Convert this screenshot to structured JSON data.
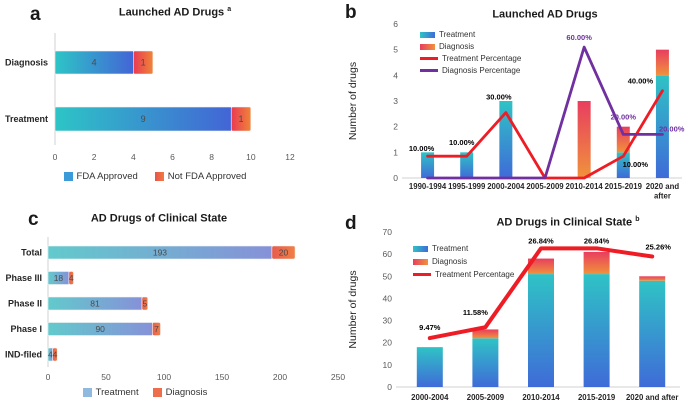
{
  "figure": {
    "background": "#ffffff",
    "panels": [
      {
        "letter": "a",
        "title": "Launched AD Drugs",
        "title_sup": "a"
      },
      {
        "letter": "b",
        "title": "Launched AD Drugs",
        "title_sup": ""
      },
      {
        "letter": "c",
        "title": "AD Drugs of Clinical State",
        "title_sup": ""
      },
      {
        "letter": "d",
        "title": "AD Drugs in Clinical State",
        "title_sup": "b"
      }
    ]
  },
  "chart_data": [
    {
      "panel": "a",
      "type": "bar",
      "orientation": "horizontal",
      "stacked": true,
      "title": "Launched AD Drugs",
      "title_superscript": "a",
      "categories": [
        "Diagnosis",
        "Treatment"
      ],
      "series": [
        {
          "name": "FDA Approved",
          "values": [
            4,
            9
          ],
          "gradient": [
            "#2dc5c6",
            "#4365d6"
          ]
        },
        {
          "name": "Not FDA Approved",
          "values": [
            1,
            1
          ],
          "gradient": [
            "#e93a55",
            "#f08437"
          ]
        }
      ],
      "xlim": [
        0,
        12
      ],
      "xticks": [
        "0",
        "2",
        "4",
        "6",
        "8",
        "10",
        "12"
      ],
      "grid": false,
      "legend_position": "bottom",
      "legend": [
        {
          "label": "FDA Approved",
          "type": "square",
          "colors": [
            "#3b9ad8",
            "#3b9ad8"
          ]
        },
        {
          "label": "Not FDA Approved",
          "type": "square",
          "colors": [
            "#e8534e",
            "#f07b3f"
          ]
        }
      ]
    },
    {
      "panel": "b",
      "type": "combo-bar-line",
      "stacked": true,
      "title": "Launched AD Drugs",
      "ylabel": "Number of drugs",
      "ylim": [
        0,
        6
      ],
      "yticks": [
        "0",
        "1",
        "2",
        "3",
        "4",
        "5",
        "6"
      ],
      "categories": [
        "1990-1994",
        "1995-1999",
        "2000-2004",
        "2005-2009",
        "2010-2014",
        "2015-2019",
        "2020 and after"
      ],
      "xtick_lines": [
        [
          "1990-1994"
        ],
        [
          "1995-1999"
        ],
        [
          "2000-2004"
        ],
        [
          "2005-2009"
        ],
        [
          "2010-2014"
        ],
        [
          "2015-2019"
        ],
        [
          "2020 and",
          "after"
        ]
      ],
      "bar_series": [
        {
          "name": "Treatment",
          "values": [
            1,
            1,
            3,
            0,
            0,
            1,
            4
          ],
          "gradient": [
            "#2fc3c5",
            "#3f6bd8"
          ]
        },
        {
          "name": "Diagnosis",
          "values": [
            0,
            0,
            0,
            0,
            3,
            1,
            1
          ],
          "gradient": [
            "#e83e5f",
            "#f0923c"
          ]
        }
      ],
      "line_series": [
        {
          "name": "Treatment Percentage",
          "color": "#ee1c25",
          "percent_values": [
            10,
            10,
            30,
            0,
            0,
            10,
            40
          ],
          "point_labels": [
            "10.00%",
            "10.00%",
            "30.00%",
            "",
            "",
            "10.00%",
            "40.00%"
          ],
          "label_color": "#000000"
        },
        {
          "name": "Diagnosis Percentage",
          "color": "#7030a0",
          "percent_values": [
            0,
            0,
            0,
            0,
            60,
            20,
            20
          ],
          "point_labels": [
            "",
            "",
            "",
            "",
            "60.00%",
            "20.00%",
            "20.00%"
          ],
          "label_color": "#7030a0"
        }
      ],
      "percent_to_axis_factor": 0.085,
      "grid": false,
      "legend_position": "top-left-inside",
      "legend": [
        {
          "label": "Treatment",
          "type": "bar",
          "colors": [
            "#2fc3c5",
            "#3f6bd8"
          ]
        },
        {
          "label": "Diagnosis",
          "type": "bar",
          "colors": [
            "#e83e5f",
            "#f0923c"
          ]
        },
        {
          "label": "Treatment Percentage",
          "type": "line",
          "colors": [
            "#ee1c25",
            "#ee1c25"
          ]
        },
        {
          "label": "Diagnosis Percentage",
          "type": "line",
          "colors": [
            "#7030a0",
            "#7030a0"
          ]
        }
      ]
    },
    {
      "panel": "c",
      "type": "bar",
      "orientation": "horizontal",
      "stacked": true,
      "title": "AD Drugs of Clinical State",
      "categories": [
        "Total",
        "Phase III",
        "Phase II",
        "Phase I",
        "IND-filed"
      ],
      "series": [
        {
          "name": "Treatment",
          "values": [
            193,
            18,
            81,
            90,
            4
          ],
          "gradient": [
            "#62cacc",
            "#8691d8"
          ]
        },
        {
          "name": "Diagnosis",
          "values": [
            20,
            4,
            5,
            7,
            4
          ],
          "gradient": [
            "#e65b51",
            "#f08044"
          ]
        }
      ],
      "xlim": [
        0,
        250
      ],
      "xticks": [
        "0",
        "50",
        "100",
        "150",
        "200",
        "250"
      ],
      "grid": false,
      "legend_position": "bottom",
      "legend": [
        {
          "label": "Treatment",
          "type": "square",
          "colors": [
            "#8fb9de",
            "#8fb9de"
          ]
        },
        {
          "label": "Diagnosis",
          "type": "square",
          "colors": [
            "#ed6d4c",
            "#ed6d4c"
          ]
        }
      ]
    },
    {
      "panel": "d",
      "type": "combo-bar-line",
      "stacked": true,
      "title": "AD Drugs in Clinical State",
      "title_superscript": "b",
      "ylabel": "Number of drugs",
      "ylim": [
        0,
        70
      ],
      "yticks": [
        "0",
        "10",
        "20",
        "30",
        "40",
        "50",
        "60",
        "70"
      ],
      "categories": [
        "2000-2004",
        "2005-2009",
        "2010-2014",
        "2015-2019",
        "2020 and after"
      ],
      "xtick_lines": [
        [
          "2000-2004"
        ],
        [
          "2005-2009"
        ],
        [
          "2010-2014"
        ],
        [
          "2015-2019"
        ],
        [
          "2020 and after"
        ]
      ],
      "bar_series": [
        {
          "name": "Treatment",
          "values": [
            18,
            22,
            51,
            51,
            48
          ],
          "gradient": [
            "#2fc3c5",
            "#3f6bd8"
          ]
        },
        {
          "name": "Diagnosis",
          "values": [
            0,
            4,
            7,
            10,
            2
          ],
          "gradient": [
            "#e83e5f",
            "#f0923c"
          ]
        }
      ],
      "line_series": [
        {
          "name": "Treatment Percentage",
          "color": "#ee1c25",
          "percent_values": [
            9.47,
            11.58,
            26.84,
            26.84,
            25.26
          ],
          "point_labels": [
            "9.47%",
            "11.58%",
            "26.84%",
            "26.84%",
            "25.26%"
          ],
          "label_color": "#000000"
        }
      ],
      "percent_to_axis_factor": 2.3333,
      "grid": false,
      "legend_position": "top-left-inside",
      "legend": [
        {
          "label": "Treatment",
          "type": "bar",
          "colors": [
            "#2fc3c5",
            "#3f6bd8"
          ]
        },
        {
          "label": "Diagnosis",
          "type": "bar",
          "colors": [
            "#e83e5f",
            "#f0923c"
          ]
        },
        {
          "label": "Treatment Percentage",
          "type": "line",
          "colors": [
            "#ee1c25",
            "#ee1c25"
          ]
        }
      ]
    }
  ]
}
